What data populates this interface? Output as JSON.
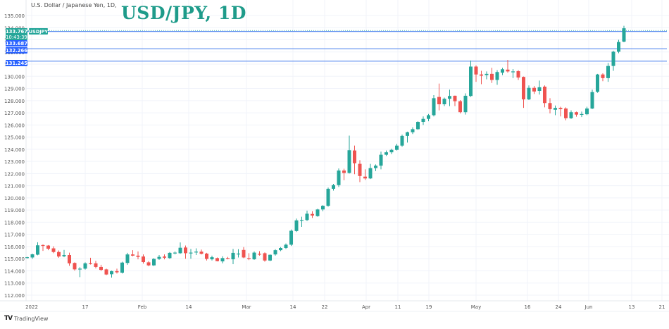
{
  "header": {
    "symbol_description": "U.S. Dollar / Japanese Yen, 1D,",
    "title": "USD/JPY, 1D"
  },
  "footer": {
    "brand_glyph": "TV",
    "brand_name": "TradingView"
  },
  "colors": {
    "up": "#26a69a",
    "down": "#ef5350",
    "title": "#1e9b8a",
    "hline": "#5b8def",
    "price_tag_last": "#26a69a",
    "price_tag_line": "#2962ff",
    "grid": "#f0f3fa"
  },
  "price_labels": {
    "last_price": "133.767",
    "countdown": "10:43:39",
    "symbol_tag": "USDJPY",
    "line1": "133.687",
    "line2": "132.266",
    "line3": "131.245"
  },
  "chart_data": {
    "type": "candlestick",
    "title": "USD/JPY, 1D",
    "subtitle": "U.S. Dollar / Japanese Yen, 1D,",
    "xlabel": "",
    "ylabel": "",
    "y_axis_position": "left",
    "ylim": [
      111.5,
      135.5
    ],
    "y_ticks": [
      112,
      113,
      114,
      115,
      116,
      117,
      118,
      119,
      120,
      121,
      122,
      123,
      124,
      125,
      126,
      127,
      128,
      129,
      130,
      131,
      132,
      133,
      134,
      135
    ],
    "y_tick_labels": [
      "112.000",
      "113.000",
      "114.000",
      "115.000",
      "116.000",
      "117.000",
      "118.000",
      "119.000",
      "120.000",
      "121.000",
      "122.000",
      "123.000",
      "124.000",
      "125.000",
      "126.000",
      "127.000",
      "128.000",
      "129.000",
      "130.000",
      "131.000",
      "132.000",
      "133.000",
      "134.000",
      "135.000"
    ],
    "x_tick_labels": [
      {
        "label": "2022",
        "x": 45
      },
      {
        "label": "17",
        "x": 121
      },
      {
        "label": "Feb",
        "x": 202
      },
      {
        "label": "14",
        "x": 268
      },
      {
        "label": "Mar",
        "x": 350
      },
      {
        "label": "14",
        "x": 416
      },
      {
        "label": "22",
        "x": 461
      },
      {
        "label": "Apr",
        "x": 520
      },
      {
        "label": "11",
        "x": 565
      },
      {
        "label": "19",
        "x": 609
      },
      {
        "label": "May",
        "x": 676
      },
      {
        "label": "16",
        "x": 749
      },
      {
        "label": "24",
        "x": 793
      },
      {
        "label": "Jun",
        "x": 836
      },
      {
        "label": "13",
        "x": 897
      },
      {
        "label": "21",
        "x": 940
      }
    ],
    "horizontal_lines": [
      133.687,
      132.266,
      131.245
    ],
    "last_price": 133.767,
    "grid": true,
    "legend": "none",
    "candles": [
      {
        "o": 115.08,
        "h": 115.16,
        "l": 115.02,
        "c": 115.12
      },
      {
        "o": 115.1,
        "h": 115.42,
        "l": 114.98,
        "c": 115.36
      },
      {
        "o": 115.33,
        "h": 116.35,
        "l": 115.28,
        "c": 116.1
      },
      {
        "o": 116.12,
        "h": 116.18,
        "l": 115.64,
        "c": 116.05
      },
      {
        "o": 116.08,
        "h": 116.12,
        "l": 115.7,
        "c": 115.82
      },
      {
        "o": 115.85,
        "h": 116.02,
        "l": 115.45,
        "c": 115.55
      },
      {
        "o": 115.55,
        "h": 115.68,
        "l": 115.08,
        "c": 115.18
      },
      {
        "o": 115.2,
        "h": 115.72,
        "l": 115.12,
        "c": 115.3
      },
      {
        "o": 115.3,
        "h": 115.5,
        "l": 114.42,
        "c": 114.62
      },
      {
        "o": 114.65,
        "h": 114.7,
        "l": 114.02,
        "c": 114.12
      },
      {
        "o": 114.15,
        "h": 114.3,
        "l": 113.48,
        "c": 114.18
      },
      {
        "o": 114.18,
        "h": 114.7,
        "l": 114.1,
        "c": 114.62
      },
      {
        "o": 114.62,
        "h": 115.08,
        "l": 114.52,
        "c": 114.58
      },
      {
        "o": 114.62,
        "h": 114.82,
        "l": 114.2,
        "c": 114.32
      },
      {
        "o": 114.32,
        "h": 114.5,
        "l": 113.98,
        "c": 114.08
      },
      {
        "o": 114.12,
        "h": 114.18,
        "l": 113.65,
        "c": 113.7
      },
      {
        "o": 113.72,
        "h": 114.02,
        "l": 113.45,
        "c": 113.98
      },
      {
        "o": 113.98,
        "h": 114.18,
        "l": 113.78,
        "c": 113.88
      },
      {
        "o": 113.85,
        "h": 114.75,
        "l": 113.78,
        "c": 114.68
      },
      {
        "o": 114.65,
        "h": 115.48,
        "l": 114.5,
        "c": 115.35
      },
      {
        "o": 115.35,
        "h": 115.7,
        "l": 115.2,
        "c": 115.25
      },
      {
        "o": 115.25,
        "h": 115.6,
        "l": 114.95,
        "c": 115.15
      },
      {
        "o": 115.18,
        "h": 115.35,
        "l": 114.6,
        "c": 114.72
      },
      {
        "o": 114.7,
        "h": 114.8,
        "l": 114.38,
        "c": 114.45
      },
      {
        "o": 114.45,
        "h": 115.05,
        "l": 114.4,
        "c": 114.98
      },
      {
        "o": 114.98,
        "h": 115.3,
        "l": 114.9,
        "c": 115.15
      },
      {
        "o": 115.18,
        "h": 115.35,
        "l": 114.95,
        "c": 115.08
      },
      {
        "o": 115.05,
        "h": 115.55,
        "l": 114.98,
        "c": 115.48
      },
      {
        "o": 115.48,
        "h": 115.6,
        "l": 115.35,
        "c": 115.5
      },
      {
        "o": 115.45,
        "h": 116.34,
        "l": 115.4,
        "c": 115.9
      },
      {
        "o": 115.92,
        "h": 116.08,
        "l": 115.0,
        "c": 115.45
      },
      {
        "o": 115.45,
        "h": 115.8,
        "l": 115.0,
        "c": 115.5
      },
      {
        "o": 115.52,
        "h": 115.85,
        "l": 115.3,
        "c": 115.58
      },
      {
        "o": 115.58,
        "h": 115.75,
        "l": 115.35,
        "c": 115.4
      },
      {
        "o": 115.42,
        "h": 115.48,
        "l": 114.85,
        "c": 114.98
      },
      {
        "o": 114.95,
        "h": 115.25,
        "l": 114.85,
        "c": 115.12
      },
      {
        "o": 115.05,
        "h": 115.1,
        "l": 114.78,
        "c": 114.8
      },
      {
        "o": 114.78,
        "h": 115.2,
        "l": 114.62,
        "c": 115.05
      },
      {
        "o": 115.05,
        "h": 115.15,
        "l": 114.95,
        "c": 115.0
      },
      {
        "o": 114.95,
        "h": 115.8,
        "l": 114.55,
        "c": 115.48
      },
      {
        "o": 115.4,
        "h": 115.78,
        "l": 115.1,
        "c": 115.42
      },
      {
        "o": 115.72,
        "h": 115.95,
        "l": 115.05,
        "c": 115.1
      },
      {
        "o": 115.05,
        "h": 115.45,
        "l": 114.88,
        "c": 114.98
      },
      {
        "o": 114.95,
        "h": 115.6,
        "l": 114.9,
        "c": 115.5
      },
      {
        "o": 115.4,
        "h": 115.62,
        "l": 115.25,
        "c": 115.35
      },
      {
        "o": 115.45,
        "h": 115.52,
        "l": 114.75,
        "c": 114.85
      },
      {
        "o": 114.85,
        "h": 115.35,
        "l": 114.8,
        "c": 115.32
      },
      {
        "o": 115.35,
        "h": 115.78,
        "l": 115.25,
        "c": 115.7
      },
      {
        "o": 115.7,
        "h": 115.95,
        "l": 115.62,
        "c": 115.88
      },
      {
        "o": 115.88,
        "h": 116.25,
        "l": 115.8,
        "c": 116.15
      },
      {
        "o": 116.15,
        "h": 117.4,
        "l": 116.05,
        "c": 117.3
      },
      {
        "o": 117.28,
        "h": 118.3,
        "l": 117.2,
        "c": 118.15
      },
      {
        "o": 118.15,
        "h": 118.45,
        "l": 117.62,
        "c": 118.18
      },
      {
        "o": 118.18,
        "h": 118.95,
        "l": 118.1,
        "c": 118.7
      },
      {
        "o": 118.68,
        "h": 118.9,
        "l": 118.35,
        "c": 118.55
      },
      {
        "o": 118.5,
        "h": 119.1,
        "l": 118.45,
        "c": 119.05
      },
      {
        "o": 119.05,
        "h": 119.4,
        "l": 118.9,
        "c": 119.35
      },
      {
        "o": 119.35,
        "h": 120.85,
        "l": 119.28,
        "c": 120.75
      },
      {
        "o": 120.75,
        "h": 121.15,
        "l": 120.6,
        "c": 121.05
      },
      {
        "o": 121.05,
        "h": 122.42,
        "l": 120.9,
        "c": 122.25
      },
      {
        "o": 122.25,
        "h": 122.4,
        "l": 121.45,
        "c": 122.05
      },
      {
        "o": 122.05,
        "h": 125.12,
        "l": 122.0,
        "c": 123.92
      },
      {
        "o": 123.9,
        "h": 124.3,
        "l": 121.95,
        "c": 122.85
      },
      {
        "o": 122.8,
        "h": 123.1,
        "l": 121.3,
        "c": 121.8
      },
      {
        "o": 121.75,
        "h": 122.35,
        "l": 121.48,
        "c": 121.6
      },
      {
        "o": 121.6,
        "h": 122.8,
        "l": 121.55,
        "c": 122.45
      },
      {
        "o": 122.45,
        "h": 122.75,
        "l": 122.2,
        "c": 122.65
      },
      {
        "o": 122.65,
        "h": 123.8,
        "l": 122.35,
        "c": 123.55
      },
      {
        "o": 123.55,
        "h": 123.9,
        "l": 123.45,
        "c": 123.75
      },
      {
        "o": 123.75,
        "h": 124.05,
        "l": 123.6,
        "c": 123.95
      },
      {
        "o": 123.95,
        "h": 124.45,
        "l": 123.9,
        "c": 124.3
      },
      {
        "o": 124.3,
        "h": 125.2,
        "l": 124.2,
        "c": 125.1
      },
      {
        "o": 125.1,
        "h": 125.45,
        "l": 124.55,
        "c": 125.4
      },
      {
        "o": 125.4,
        "h": 125.8,
        "l": 125.25,
        "c": 125.65
      },
      {
        "o": 125.65,
        "h": 126.3,
        "l": 125.6,
        "c": 126.25
      },
      {
        "o": 126.25,
        "h": 126.7,
        "l": 126.0,
        "c": 126.5
      },
      {
        "o": 126.5,
        "h": 126.9,
        "l": 126.3,
        "c": 126.8
      },
      {
        "o": 126.8,
        "h": 128.45,
        "l": 126.7,
        "c": 128.2
      },
      {
        "o": 128.3,
        "h": 129.4,
        "l": 127.2,
        "c": 127.7
      },
      {
        "o": 127.7,
        "h": 128.25,
        "l": 127.55,
        "c": 128.15
      },
      {
        "o": 128.15,
        "h": 128.9,
        "l": 127.55,
        "c": 128.38
      },
      {
        "o": 128.4,
        "h": 128.42,
        "l": 127.55,
        "c": 127.95
      },
      {
        "o": 127.95,
        "h": 128.05,
        "l": 126.95,
        "c": 127.05
      },
      {
        "o": 127.05,
        "h": 128.6,
        "l": 126.85,
        "c": 128.4
      },
      {
        "o": 128.38,
        "h": 131.3,
        "l": 128.3,
        "c": 130.8
      },
      {
        "o": 130.8,
        "h": 130.9,
        "l": 129.55,
        "c": 130.15
      },
      {
        "o": 130.15,
        "h": 130.45,
        "l": 129.35,
        "c": 130.05
      },
      {
        "o": 130.1,
        "h": 130.4,
        "l": 129.75,
        "c": 130.2
      },
      {
        "o": 130.2,
        "h": 130.7,
        "l": 129.45,
        "c": 129.7
      },
      {
        "o": 129.7,
        "h": 130.5,
        "l": 129.3,
        "c": 130.35
      },
      {
        "o": 130.3,
        "h": 130.7,
        "l": 130.1,
        "c": 130.58
      },
      {
        "o": 130.55,
        "h": 131.35,
        "l": 130.3,
        "c": 130.4
      },
      {
        "o": 130.4,
        "h": 130.6,
        "l": 129.85,
        "c": 130.4
      },
      {
        "o": 130.42,
        "h": 130.5,
        "l": 129.7,
        "c": 129.9
      },
      {
        "o": 129.95,
        "h": 129.98,
        "l": 127.4,
        "c": 128.1
      },
      {
        "o": 128.1,
        "h": 129.25,
        "l": 128.05,
        "c": 129.05
      },
      {
        "o": 129.05,
        "h": 129.2,
        "l": 128.55,
        "c": 128.75
      },
      {
        "o": 128.8,
        "h": 129.65,
        "l": 128.5,
        "c": 129.1
      },
      {
        "o": 129.15,
        "h": 129.25,
        "l": 127.45,
        "c": 127.8
      },
      {
        "o": 127.8,
        "h": 128.2,
        "l": 126.95,
        "c": 127.3
      },
      {
        "o": 127.25,
        "h": 127.6,
        "l": 126.8,
        "c": 127.4
      },
      {
        "o": 127.4,
        "h": 127.5,
        "l": 126.7,
        "c": 127.3
      },
      {
        "o": 127.35,
        "h": 127.45,
        "l": 126.38,
        "c": 126.55
      },
      {
        "o": 126.55,
        "h": 127.2,
        "l": 126.5,
        "c": 127.05
      },
      {
        "o": 127.05,
        "h": 127.1,
        "l": 126.68,
        "c": 126.85
      },
      {
        "o": 126.85,
        "h": 127.1,
        "l": 126.65,
        "c": 126.9
      },
      {
        "o": 126.88,
        "h": 127.5,
        "l": 126.8,
        "c": 127.35
      },
      {
        "o": 127.35,
        "h": 128.9,
        "l": 127.3,
        "c": 128.7
      },
      {
        "o": 128.72,
        "h": 130.2,
        "l": 128.65,
        "c": 130.15
      },
      {
        "o": 130.15,
        "h": 130.25,
        "l": 129.6,
        "c": 129.85
      },
      {
        "o": 129.85,
        "h": 131.1,
        "l": 129.55,
        "c": 130.85
      },
      {
        "o": 130.85,
        "h": 132.1,
        "l": 130.45,
        "c": 132.02
      },
      {
        "o": 132.02,
        "h": 133.0,
        "l": 131.9,
        "c": 132.82
      },
      {
        "o": 132.85,
        "h": 134.15,
        "l": 132.8,
        "c": 133.95
      }
    ]
  }
}
